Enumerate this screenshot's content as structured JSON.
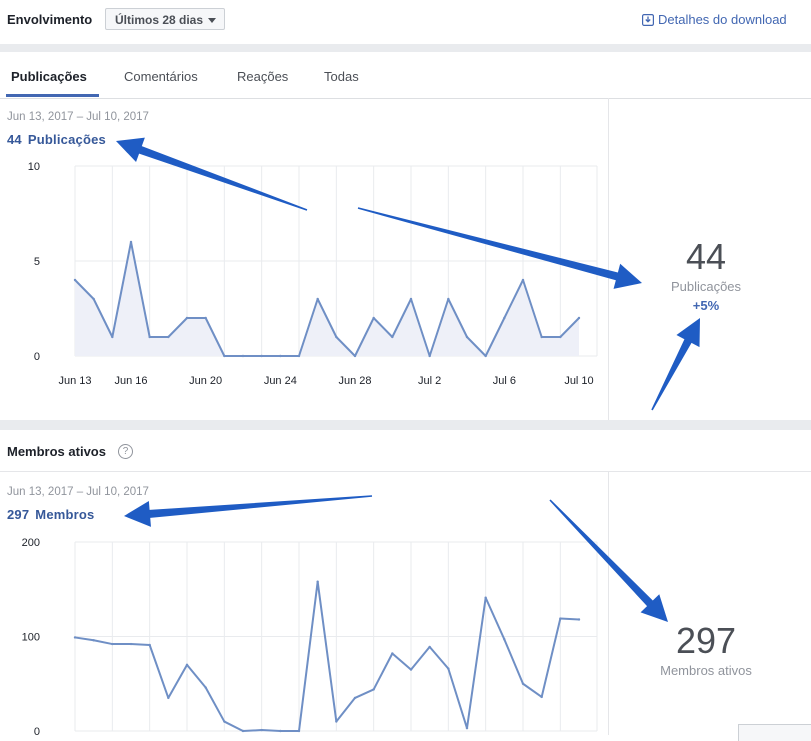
{
  "header": {
    "title": "Envolvimento",
    "range_select": "Últimos 28 dias",
    "download_label": "Detalhes do download"
  },
  "tabs": [
    {
      "label": "Publicações",
      "active": true
    },
    {
      "label": "Comentários",
      "active": false
    },
    {
      "label": "Reações",
      "active": false
    },
    {
      "label": "Todas",
      "active": false
    }
  ],
  "posts": {
    "date_range": "Jun 13, 2017 – Jul 10, 2017",
    "count": "44",
    "count_label": "Publicações",
    "summary_number": "44",
    "summary_label": "Publicações",
    "summary_change": "+5%"
  },
  "members": {
    "section_title": "Membros ativos",
    "help_icon": "?",
    "date_range": "Jun 13, 2017 – Jul 10, 2017",
    "count": "297",
    "count_label": "Membros",
    "summary_number": "297",
    "summary_label": "Membros ativos"
  },
  "colors": {
    "accent": "#4267b2",
    "line": "#6f8fc5",
    "fill": "#eef0f8",
    "annotation_arrow": "#1f5cc4"
  },
  "chart_data": [
    {
      "type": "area",
      "name_ref": "posts",
      "x": [
        "Jun 13",
        "Jun 14",
        "Jun 15",
        "Jun 16",
        "Jun 17",
        "Jun 18",
        "Jun 19",
        "Jun 20",
        "Jun 21",
        "Jun 22",
        "Jun 23",
        "Jun 24",
        "Jun 25",
        "Jun 26",
        "Jun 27",
        "Jun 28",
        "Jun 29",
        "Jun 30",
        "Jul 1",
        "Jul 2",
        "Jul 3",
        "Jul 4",
        "Jul 5",
        "Jul 6",
        "Jul 7",
        "Jul 8",
        "Jul 9",
        "Jul 10"
      ],
      "values": [
        4,
        3,
        1,
        6,
        1,
        1,
        2,
        2,
        0,
        0,
        0,
        0,
        0,
        3,
        1,
        0,
        2,
        1,
        3,
        0,
        3,
        1,
        0,
        2,
        4,
        1,
        1,
        2
      ],
      "ylim": [
        0,
        10
      ],
      "yticks": [
        "10",
        "5",
        "0"
      ],
      "xticks": [
        "Jun 13",
        "Jun 16",
        "Jun 20",
        "Jun 24",
        "Jun 28",
        "Jul 2",
        "Jul 6",
        "Jul 10"
      ],
      "grid": true
    },
    {
      "type": "line",
      "name_ref": "members",
      "x": [
        "Jun 13",
        "Jun 14",
        "Jun 15",
        "Jun 16",
        "Jun 17",
        "Jun 18",
        "Jun 19",
        "Jun 20",
        "Jun 21",
        "Jun 22",
        "Jun 23",
        "Jun 24",
        "Jun 25",
        "Jun 26",
        "Jun 27",
        "Jun 28",
        "Jun 29",
        "Jun 30",
        "Jul 1",
        "Jul 2",
        "Jul 3",
        "Jul 4",
        "Jul 5",
        "Jul 6",
        "Jul 7",
        "Jul 8",
        "Jul 9",
        "Jul 10"
      ],
      "values": [
        99,
        96,
        92,
        92,
        91,
        35,
        70,
        46,
        10,
        0,
        1,
        0,
        0,
        158,
        10,
        35,
        44,
        82,
        65,
        89,
        66,
        3,
        141,
        97,
        50,
        36,
        119,
        118
      ],
      "ylim": [
        0,
        200
      ],
      "yticks": [
        "200",
        "100",
        "0"
      ],
      "grid": true
    }
  ]
}
